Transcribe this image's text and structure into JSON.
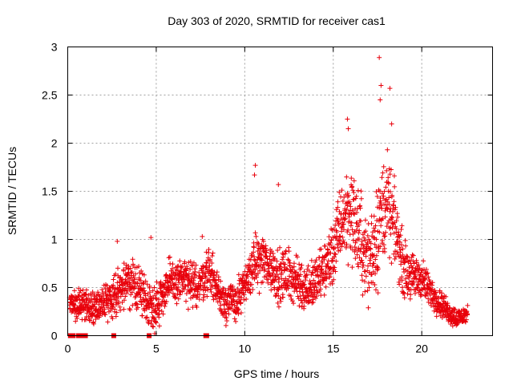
{
  "chart_data": {
    "type": "scatter",
    "title": "Day 303 of 2020, SRMTID for receiver cas1",
    "xlabel": "GPS time / hours",
    "ylabel": "SRMTID / TECUs",
    "xlim": [
      0,
      24
    ],
    "ylim": [
      0,
      3
    ],
    "x_ticks": [
      "0",
      "5",
      "10",
      "15",
      "20"
    ],
    "x_tick_values": [
      0,
      5,
      10,
      15,
      20
    ],
    "y_ticks": [
      "0",
      "0.5",
      "1",
      "1.5",
      "2",
      "2.5",
      "3"
    ],
    "y_tick_values": [
      0,
      0.5,
      1,
      1.5,
      2,
      2.5,
      3
    ],
    "grid": true,
    "marker": "+",
    "color": "#e8000b",
    "envelope": {
      "description": "approximate baseline trend of SRMTID values over time (data units)",
      "x": [
        0.1,
        1,
        1.5,
        2,
        2.5,
        3,
        3.5,
        4,
        4.5,
        5,
        5.5,
        6,
        6.5,
        7,
        7.5,
        8,
        8.5,
        9,
        9.5,
        10,
        10.5,
        11,
        11.5,
        12,
        12.5,
        13,
        13.5,
        14,
        14.5,
        15,
        15.5,
        16,
        16.5,
        17,
        17.5,
        18,
        18.5,
        19,
        19.5,
        20,
        20.5,
        21,
        21.5,
        22,
        22.6
      ],
      "y": [
        0.35,
        0.3,
        0.3,
        0.35,
        0.4,
        0.5,
        0.55,
        0.5,
        0.35,
        0.3,
        0.5,
        0.55,
        0.6,
        0.5,
        0.55,
        0.7,
        0.45,
        0.35,
        0.35,
        0.5,
        0.75,
        0.8,
        0.7,
        0.6,
        0.65,
        0.55,
        0.5,
        0.55,
        0.7,
        0.85,
        1.2,
        1.3,
        1.0,
        0.75,
        1.1,
        1.4,
        1.1,
        0.7,
        0.6,
        0.6,
        0.45,
        0.35,
        0.25,
        0.18,
        0.22
      ]
    },
    "spread": {
      "description": "approximate scatter half-width around the trend (data units)",
      "x": [
        0.1,
        3,
        5,
        8,
        10,
        11,
        14,
        15,
        16,
        17,
        17.5,
        18,
        19,
        20,
        21,
        22.6
      ],
      "y": [
        0.12,
        0.2,
        0.22,
        0.2,
        0.18,
        0.25,
        0.22,
        0.3,
        0.45,
        0.4,
        0.55,
        0.45,
        0.25,
        0.18,
        0.12,
        0.08
      ]
    },
    "sample_interval_hours": 0.01,
    "outliers": [
      {
        "x": 17.6,
        "y": 2.89
      },
      {
        "x": 17.7,
        "y": 2.6
      },
      {
        "x": 18.2,
        "y": 2.57
      },
      {
        "x": 17.65,
        "y": 2.45
      },
      {
        "x": 15.8,
        "y": 2.25
      },
      {
        "x": 15.85,
        "y": 2.15
      },
      {
        "x": 18.3,
        "y": 2.2
      },
      {
        "x": 10.6,
        "y": 1.77
      },
      {
        "x": 10.55,
        "y": 1.67
      },
      {
        "x": 11.9,
        "y": 1.57
      },
      {
        "x": 2.8,
        "y": 0.98
      },
      {
        "x": 4.7,
        "y": 1.02
      },
      {
        "x": 7.6,
        "y": 1.03
      }
    ],
    "zero_markers_x": [
      0.15,
      0.3,
      0.6,
      0.75,
      0.85,
      0.95,
      1.0,
      2.6,
      4.6,
      7.8,
      7.85
    ]
  }
}
